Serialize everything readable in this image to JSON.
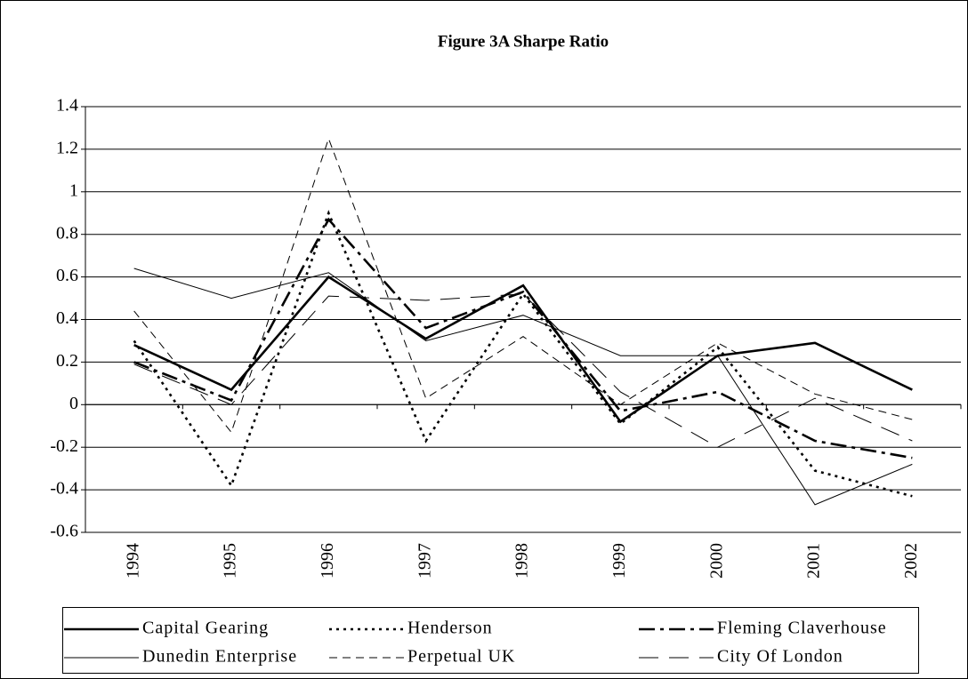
{
  "chart_data": {
    "type": "line",
    "title": "Figure 3A  Sharpe Ratio",
    "categories": [
      "1994",
      "1995",
      "1996",
      "1997",
      "1998",
      "1999",
      "2000",
      "2001",
      "2002"
    ],
    "series": [
      {
        "name": "Capital Gearing",
        "color": "#000000",
        "line_style": "solid",
        "line_weight": "thick",
        "values": [
          0.28,
          0.07,
          0.6,
          0.31,
          0.56,
          -0.08,
          0.23,
          0.29,
          0.07
        ]
      },
      {
        "name": "Henderson",
        "color": "#000000",
        "line_style": "dotted",
        "line_weight": "thick",
        "values": [
          0.3,
          -0.38,
          0.9,
          -0.17,
          0.52,
          -0.09,
          0.27,
          -0.31,
          -0.43
        ]
      },
      {
        "name": "Fleming Claverhouse",
        "color": "#000000",
        "line_style": "dash-dot",
        "line_weight": "thick",
        "values": [
          0.2,
          0.02,
          0.87,
          0.36,
          0.53,
          -0.03,
          0.06,
          -0.17,
          -0.25
        ]
      },
      {
        "name": "Dunedin Enterprise",
        "color": "#000000",
        "line_style": "solid",
        "line_weight": "thin",
        "values": [
          0.64,
          0.5,
          0.62,
          0.3,
          0.42,
          0.23,
          0.23,
          -0.47,
          -0.28
        ]
      },
      {
        "name": "Perpetual UK",
        "color": "#000000",
        "line_style": "dashed",
        "line_weight": "thin",
        "values": [
          0.44,
          -0.13,
          1.25,
          0.03,
          0.32,
          0.0,
          0.29,
          0.05,
          -0.07
        ]
      },
      {
        "name": "City Of London",
        "color": "#000000",
        "line_style": "long-dash",
        "line_weight": "thin",
        "values": [
          0.19,
          0.0,
          0.51,
          0.49,
          0.52,
          0.06,
          -0.2,
          0.03,
          -0.17
        ]
      }
    ],
    "ylim": [
      -0.6,
      1.4
    ],
    "yticks": [
      -0.6,
      -0.4,
      -0.2,
      0,
      0.2,
      0.4,
      0.6,
      0.8,
      1,
      1.2,
      1.4
    ],
    "grid": true,
    "legend": "bottom"
  }
}
